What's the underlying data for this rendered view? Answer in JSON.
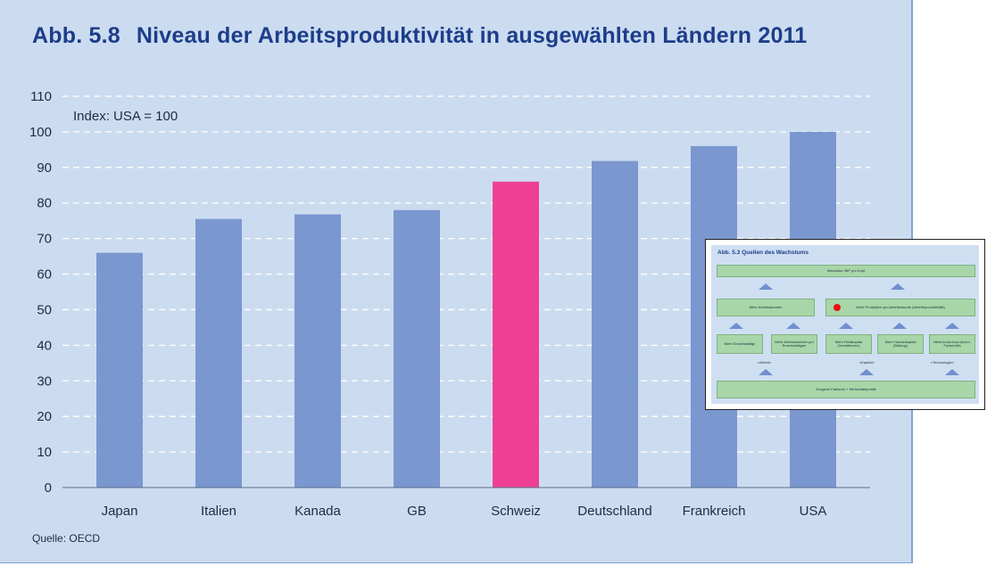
{
  "title_number": "Abb. 5.8",
  "title_text": "Niveau der Arbeitsproduktivität in ausgewählten Ländern 2011",
  "source": "Quelle: OECD",
  "chart_data": {
    "type": "bar",
    "categories": [
      "Japan",
      "Italien",
      "Kanada",
      "GB",
      "Schweiz",
      "Deutschland",
      "Frankreich",
      "USA"
    ],
    "values": [
      66,
      75.5,
      76.8,
      78,
      86,
      91.8,
      96,
      100
    ],
    "highlight_category": "Schweiz",
    "annotation": "Index: USA = 100",
    "ylim": [
      0,
      110
    ],
    "yticks": [
      0,
      10,
      20,
      30,
      40,
      50,
      60,
      70,
      80,
      90,
      100,
      110
    ],
    "grid": true,
    "colors": {
      "bar": "#7b97cf",
      "highlight": "#ef3f95",
      "background": "#ccdcf0",
      "grid": "#ffffff"
    }
  },
  "inset": {
    "title": "Abb. 5.3  Quellen des Wachstums",
    "top_box": "Wachstum BIP pro Kopf",
    "mid_left": "Mehr Arbeitsstunden",
    "mid_right": "Mehr Produktion pro Arbeitsstunde (Arbeitsproduktivität)",
    "lower_boxes": [
      "Mehr Erwerbstätige",
      "Mehr Arbeitsstunden pro Erwerbstätigen",
      "Mehr Realkapital (Investitionen)",
      "Mehr Humankapital (Bildung)",
      "Mehr know-how (techn. Fortschritt)"
    ],
    "group_labels": [
      "«Arbeit»",
      "«Kapital»",
      "«Technologie»"
    ],
    "bottom_box": "Exogene Faktoren + Wirtschaftspolitik"
  }
}
